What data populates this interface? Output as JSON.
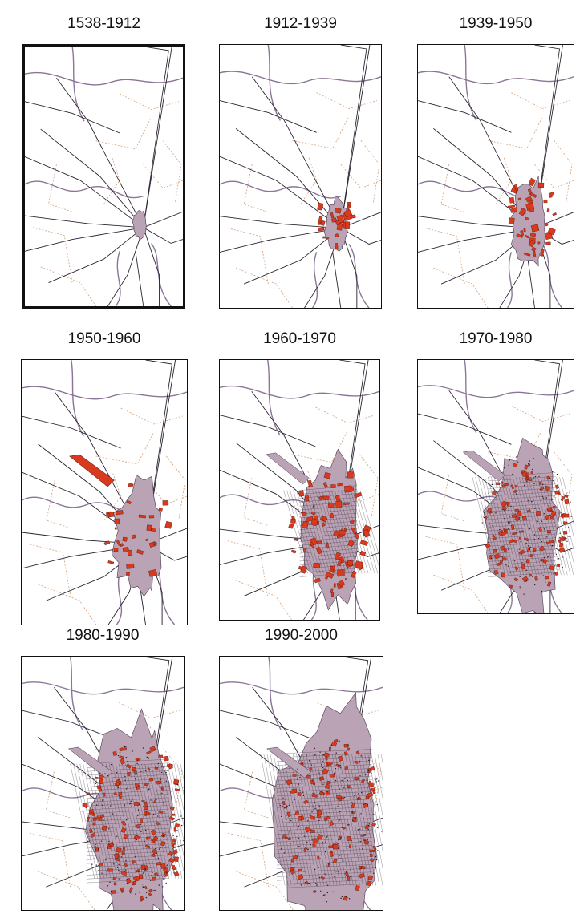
{
  "figure": {
    "panels": [
      {
        "label": "1538-1912",
        "stage": 0
      },
      {
        "label": "1912-1939",
        "stage": 1
      },
      {
        "label": "1939-1950",
        "stage": 2
      },
      {
        "label": "1950-1960",
        "stage": 3
      },
      {
        "label": "1960-1970",
        "stage": 4
      },
      {
        "label": "1970-1980",
        "stage": 5
      },
      {
        "label": "1980-1990",
        "stage": 6
      },
      {
        "label": "1990-2000",
        "stage": 7
      }
    ],
    "colors": {
      "new_growth": "#d9391c",
      "urban_existing": "#b9a3b4",
      "roads": "#2a2330",
      "rivers": "#8a7497",
      "rural_paths": "#d4a07a",
      "frame": "#111111"
    }
  }
}
